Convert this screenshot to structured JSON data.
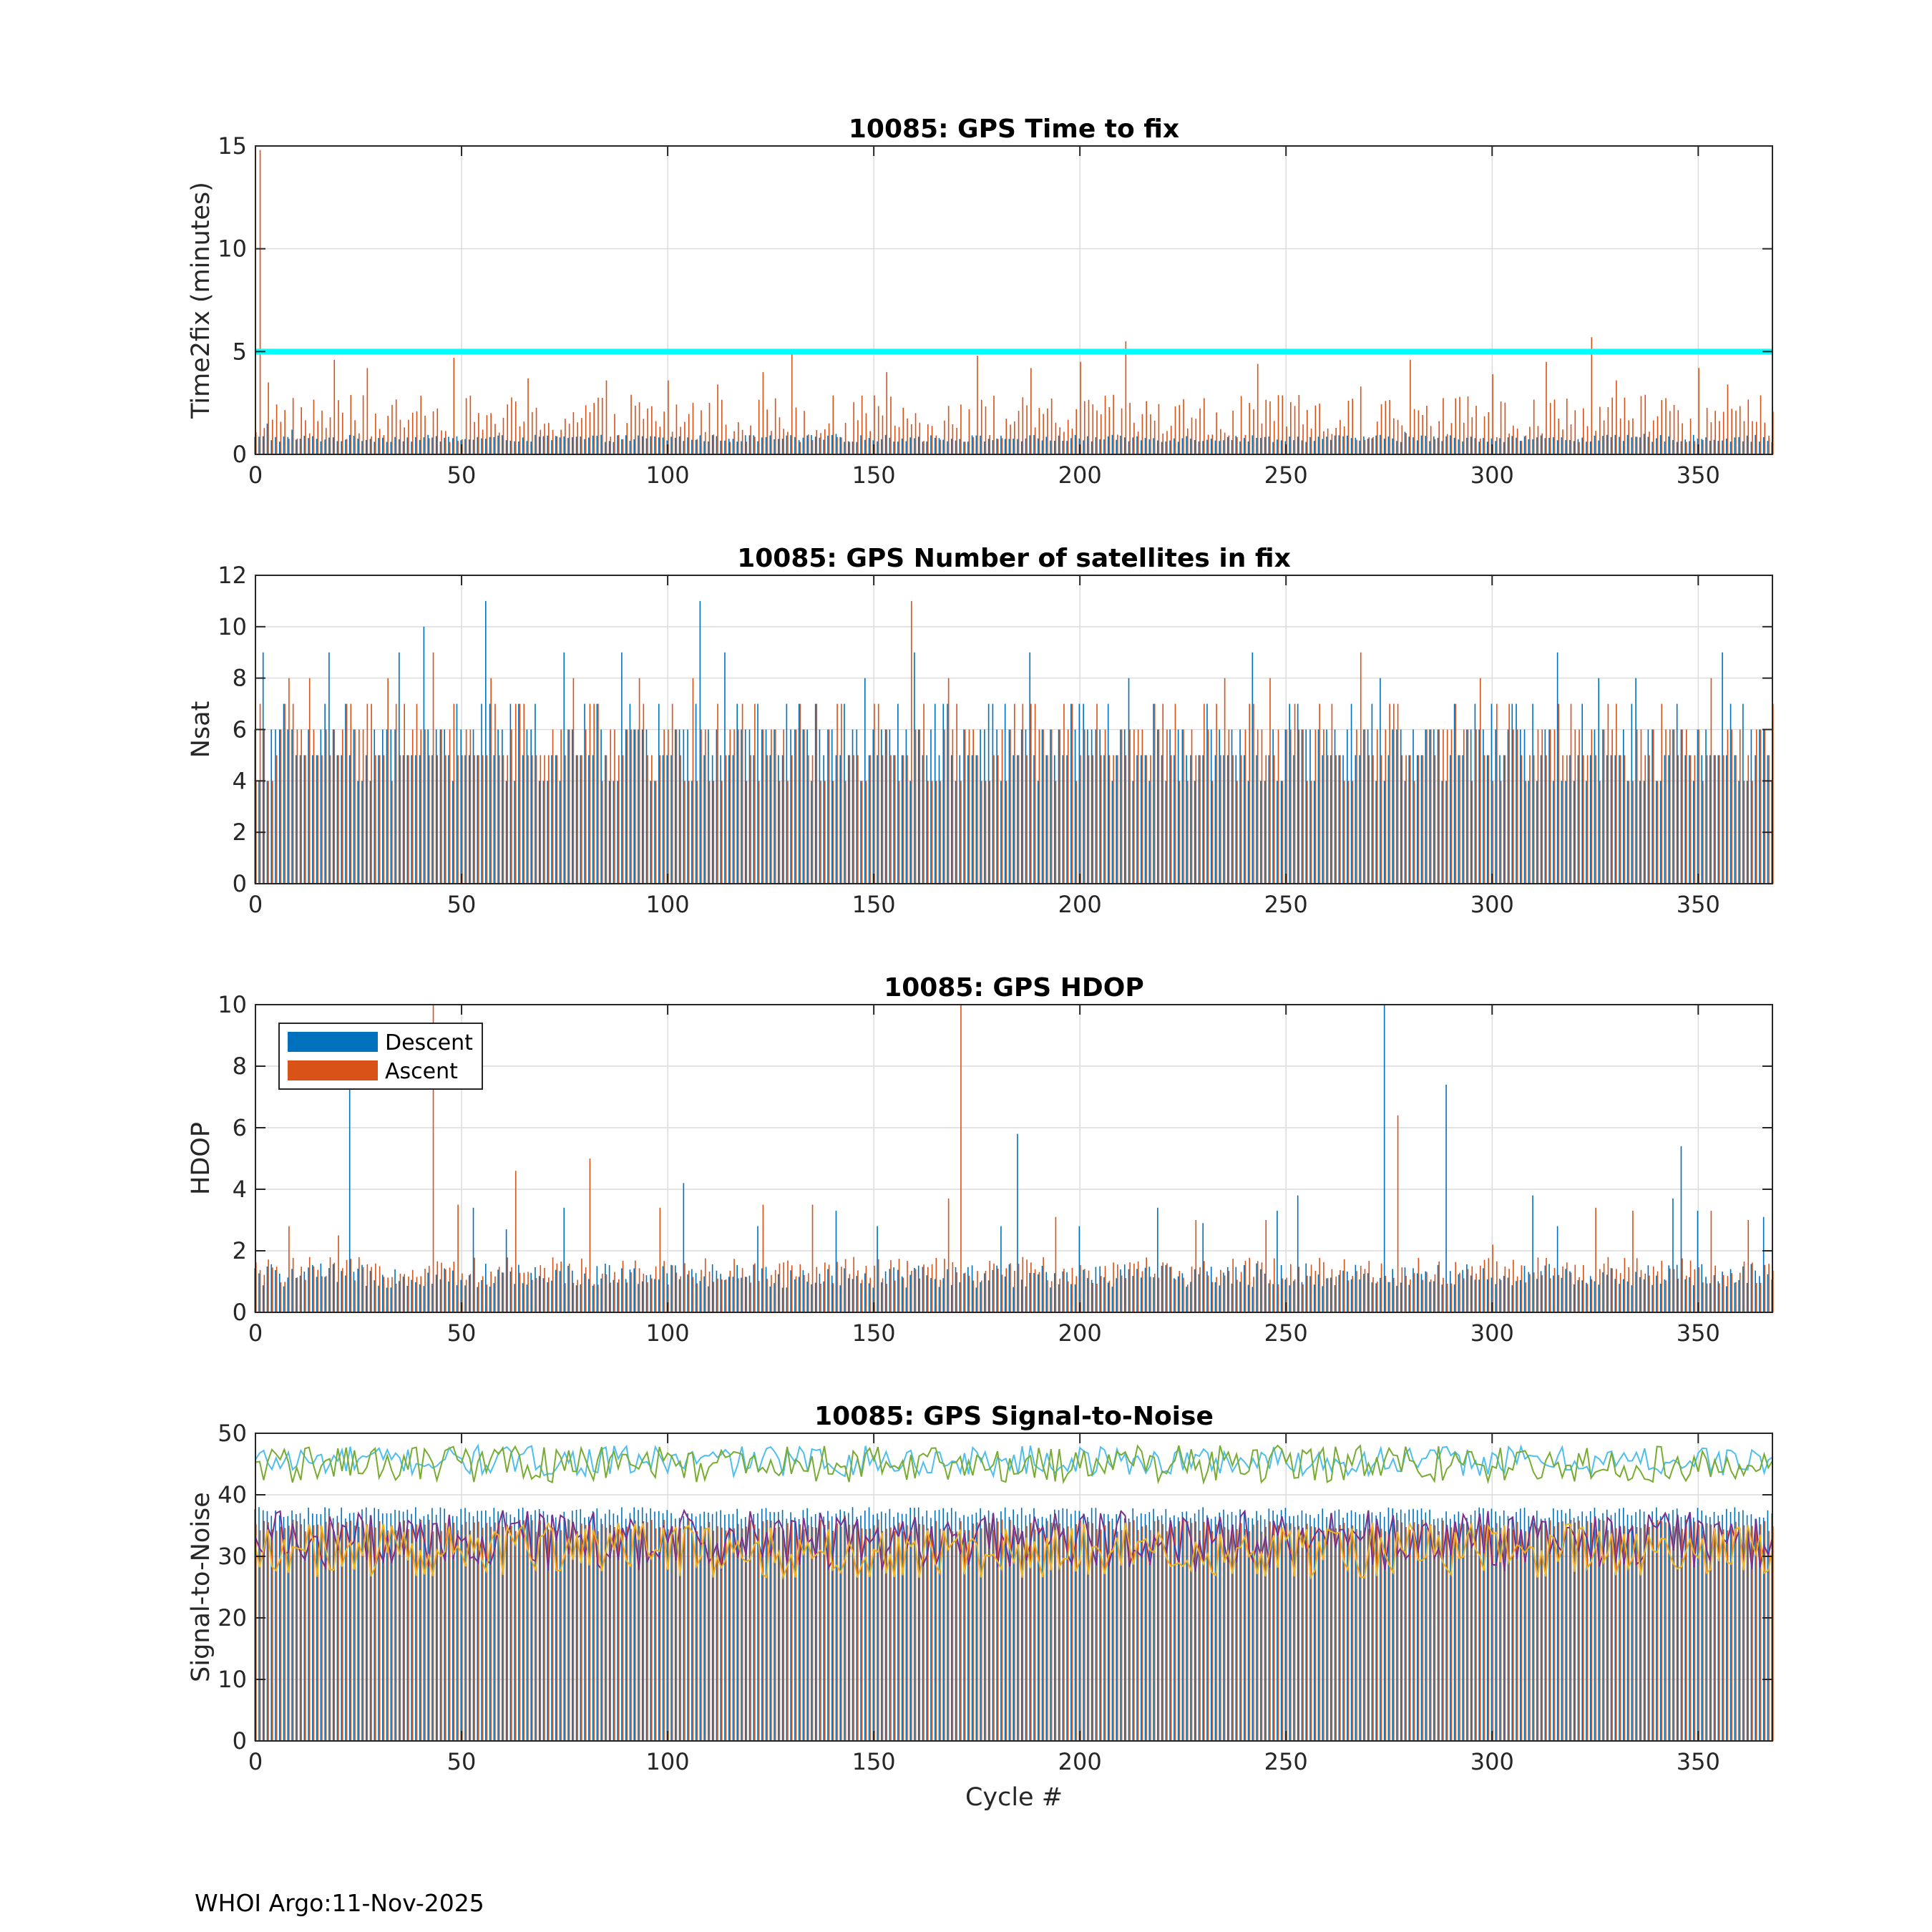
{
  "footer": "WHOI Argo:11-Nov-2025",
  "legend_colors": {
    "descent": "#0072BD",
    "ascent": "#D95319"
  },
  "chart_data": [
    {
      "type": "bar",
      "title": "10085: GPS Time to fix",
      "xlabel": "",
      "ylabel": "Time2fix (minutes)",
      "xlim": [
        0,
        368
      ],
      "ylim": [
        0,
        15
      ],
      "xticks": [
        0,
        50,
        100,
        150,
        200,
        250,
        300,
        350
      ],
      "yticks": [
        0,
        5,
        10,
        15
      ],
      "grid": true,
      "reference_line": {
        "y": 5,
        "color": "#00FFFF"
      },
      "series": [
        {
          "name": "Descent",
          "color": "#0072BD",
          "baseline": 0.8,
          "spikes": [
            [
              3,
              1.5
            ],
            [
              9,
              1.2
            ],
            [
              141,
              1.0
            ],
            [
              279,
              1.1
            ],
            [
              337,
              1.0
            ]
          ]
        },
        {
          "name": "Ascent",
          "color": "#D95319",
          "baseline": 1.8,
          "spikes": [
            [
              1,
              14.8
            ],
            [
              3,
              3.5
            ],
            [
              19,
              4.6
            ],
            [
              27,
              4.2
            ],
            [
              48,
              4.7
            ],
            [
              66,
              3.7
            ],
            [
              85,
              3.6
            ],
            [
              91,
              2.9
            ],
            [
              100,
              3.6
            ],
            [
              112,
              3.4
            ],
            [
              123,
              4.0
            ],
            [
              130,
              5.1
            ],
            [
              153,
              4.0
            ],
            [
              175,
              4.8
            ],
            [
              188,
              4.2
            ],
            [
              200,
              4.5
            ],
            [
              211,
              5.5
            ],
            [
              243,
              4.4
            ],
            [
              268,
              3.3
            ],
            [
              280,
              4.6
            ],
            [
              300,
              3.9
            ],
            [
              313,
              4.5
            ],
            [
              324,
              5.7
            ],
            [
              330,
              3.6
            ],
            [
              350,
              4.2
            ],
            [
              357,
              3.4
            ]
          ]
        }
      ]
    },
    {
      "type": "bar",
      "title": "10085: GPS Number of satellites in fix",
      "xlabel": "",
      "ylabel": "Nsat",
      "xlim": [
        0,
        368
      ],
      "ylim": [
        0,
        12
      ],
      "xticks": [
        0,
        50,
        100,
        150,
        200,
        250,
        300,
        350
      ],
      "yticks": [
        0,
        2,
        4,
        6,
        8,
        10,
        12
      ],
      "grid": true,
      "series": [
        {
          "name": "Descent",
          "color": "#0072BD",
          "baseline": 5,
          "spikes": [
            [
              2,
              9
            ],
            [
              18,
              9
            ],
            [
              35,
              9
            ],
            [
              41,
              10
            ],
            [
              56,
              11
            ],
            [
              75,
              9
            ],
            [
              89,
              9
            ],
            [
              108,
              11
            ],
            [
              114,
              9
            ],
            [
              148,
              8
            ],
            [
              160,
              9
            ],
            [
              188,
              9
            ],
            [
              212,
              8
            ],
            [
              242,
              9
            ],
            [
              273,
              8
            ],
            [
              316,
              9
            ],
            [
              326,
              8
            ],
            [
              335,
              8
            ],
            [
              356,
              9
            ]
          ]
        },
        {
          "name": "Ascent",
          "color": "#D95319",
          "baseline": 6,
          "spikes": [
            [
              8,
              8
            ],
            [
              13,
              8
            ],
            [
              32,
              8
            ],
            [
              43,
              9
            ],
            [
              57,
              8
            ],
            [
              77,
              8
            ],
            [
              93,
              8
            ],
            [
              106,
              8
            ],
            [
              159,
              11
            ],
            [
              168,
              8
            ],
            [
              235,
              8
            ],
            [
              246,
              8
            ],
            [
              268,
              9
            ],
            [
              297,
              8
            ],
            [
              353,
              8
            ],
            [
              368,
              7
            ]
          ]
        }
      ]
    },
    {
      "type": "bar",
      "title": "10085: GPS HDOP",
      "xlabel": "",
      "ylabel": "HDOP",
      "xlim": [
        0,
        368
      ],
      "ylim": [
        0,
        10
      ],
      "xticks": [
        0,
        50,
        100,
        150,
        200,
        250,
        300,
        350
      ],
      "yticks": [
        0,
        2,
        4,
        6,
        8,
        10
      ],
      "grid": true,
      "legend": {
        "placement": "top-left",
        "entries": [
          "Descent",
          "Ascent"
        ]
      },
      "series": [
        {
          "name": "Descent",
          "color": "#0072BD",
          "baseline": 1.0,
          "spikes": [
            [
              23,
              7.3
            ],
            [
              53,
              3.4
            ],
            [
              61,
              2.7
            ],
            [
              75,
              3.4
            ],
            [
              104,
              4.2
            ],
            [
              122,
              2.8
            ],
            [
              141,
              3.3
            ],
            [
              151,
              2.8
            ],
            [
              181,
              2.8
            ],
            [
              185,
              5.8
            ],
            [
              200,
              2.8
            ],
            [
              219,
              3.4
            ],
            [
              230,
              2.9
            ],
            [
              248,
              3.3
            ],
            [
              253,
              3.8
            ],
            [
              274,
              10.0
            ],
            [
              289,
              7.4
            ],
            [
              310,
              3.8
            ],
            [
              316,
              2.8
            ],
            [
              344,
              3.7
            ],
            [
              346,
              5.4
            ],
            [
              350,
              3.3
            ],
            [
              366,
              3.1
            ]
          ]
        },
        {
          "name": "Ascent",
          "color": "#D95319",
          "baseline": 1.2,
          "spikes": [
            [
              8,
              2.8
            ],
            [
              20,
              2.5
            ],
            [
              43,
              10.0
            ],
            [
              49,
              3.5
            ],
            [
              63,
              4.6
            ],
            [
              81,
              5.0
            ],
            [
              98,
              3.4
            ],
            [
              123,
              3.5
            ],
            [
              135,
              3.5
            ],
            [
              168,
              3.7
            ],
            [
              171,
              10.0
            ],
            [
              194,
              3.1
            ],
            [
              228,
              3.0
            ],
            [
              245,
              3.0
            ],
            [
              277,
              6.4
            ],
            [
              300,
              2.2
            ],
            [
              325,
              3.4
            ],
            [
              334,
              3.3
            ],
            [
              353,
              3.3
            ],
            [
              362,
              3.0
            ]
          ]
        }
      ]
    },
    {
      "type": "bar",
      "title": "10085: GPS Signal-to-Noise",
      "xlabel": "Cycle #",
      "ylabel": "Signal-to-Noise",
      "xlim": [
        0,
        368
      ],
      "ylim": [
        0,
        50
      ],
      "xticks": [
        0,
        50,
        100,
        150,
        200,
        250,
        300,
        350
      ],
      "yticks": [
        0,
        10,
        20,
        30,
        40,
        50
      ],
      "grid": true,
      "series": [
        {
          "name": "Descent",
          "color": "#0072BD",
          "baseline": 37,
          "spikes": []
        },
        {
          "name": "Ascent",
          "color": "#D95319",
          "baseline": 35,
          "spikes": []
        }
      ],
      "lines": [
        {
          "color": "#4DBEEE",
          "mean": 45.5,
          "amplitude": 2.5
        },
        {
          "color": "#77AC30",
          "mean": 45.0,
          "amplitude": 3.0
        },
        {
          "color": "#7E2F8E",
          "mean": 32.5,
          "amplitude": 5.0
        },
        {
          "color": "#EDB120",
          "mean": 31.0,
          "amplitude": 4.5
        }
      ]
    }
  ]
}
